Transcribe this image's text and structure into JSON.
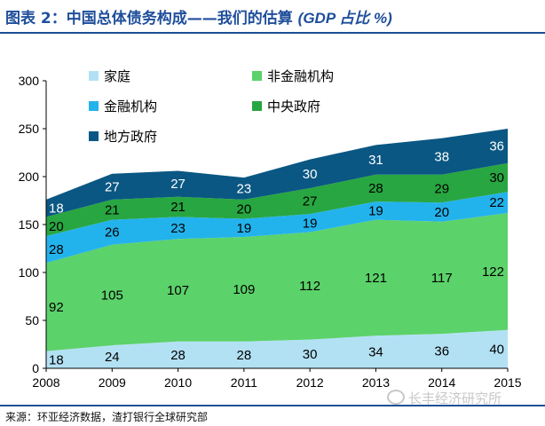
{
  "title": {
    "main": "图表 2：中国总体债务构成——我们的估算",
    "unit": "(GDP 占比 %)"
  },
  "source": "来源：环亚经济数据，渣打银行全球研究部",
  "watermark": "长丰经济研究所",
  "chart_data": {
    "type": "area",
    "stacked": true,
    "x": [
      "2008",
      "2009",
      "2010",
      "2011",
      "2012",
      "2013",
      "2014",
      "2015"
    ],
    "ylim": [
      0,
      300
    ],
    "yticks": [
      0,
      50,
      100,
      150,
      200,
      250,
      300
    ],
    "grid": false,
    "legend_position": "top",
    "series": [
      {
        "name": "家庭",
        "values": [
          18,
          24,
          28,
          28,
          30,
          34,
          36,
          40
        ],
        "color": "#b3e1f4",
        "label_color": "#000000"
      },
      {
        "name": "非金融机构",
        "values": [
          92,
          105,
          107,
          109,
          112,
          121,
          117,
          122
        ],
        "color": "#5cd26a",
        "label_color": "#000000"
      },
      {
        "name": "金融机构",
        "values": [
          28,
          26,
          23,
          19,
          19,
          19,
          20,
          22
        ],
        "color": "#23b3ec",
        "label_color": "#000000"
      },
      {
        "name": "中央政府",
        "values": [
          20,
          21,
          21,
          20,
          27,
          28,
          29,
          30
        ],
        "color": "#28a641",
        "label_color": "#000000"
      },
      {
        "name": "地方政府",
        "values": [
          18,
          27,
          27,
          23,
          30,
          31,
          38,
          36
        ],
        "color": "#0a5783",
        "label_color": "#ffffff"
      }
    ],
    "legend_order": [
      "家庭",
      "非金融机构",
      "金融机构",
      "中央政府",
      "地方政府"
    ]
  }
}
